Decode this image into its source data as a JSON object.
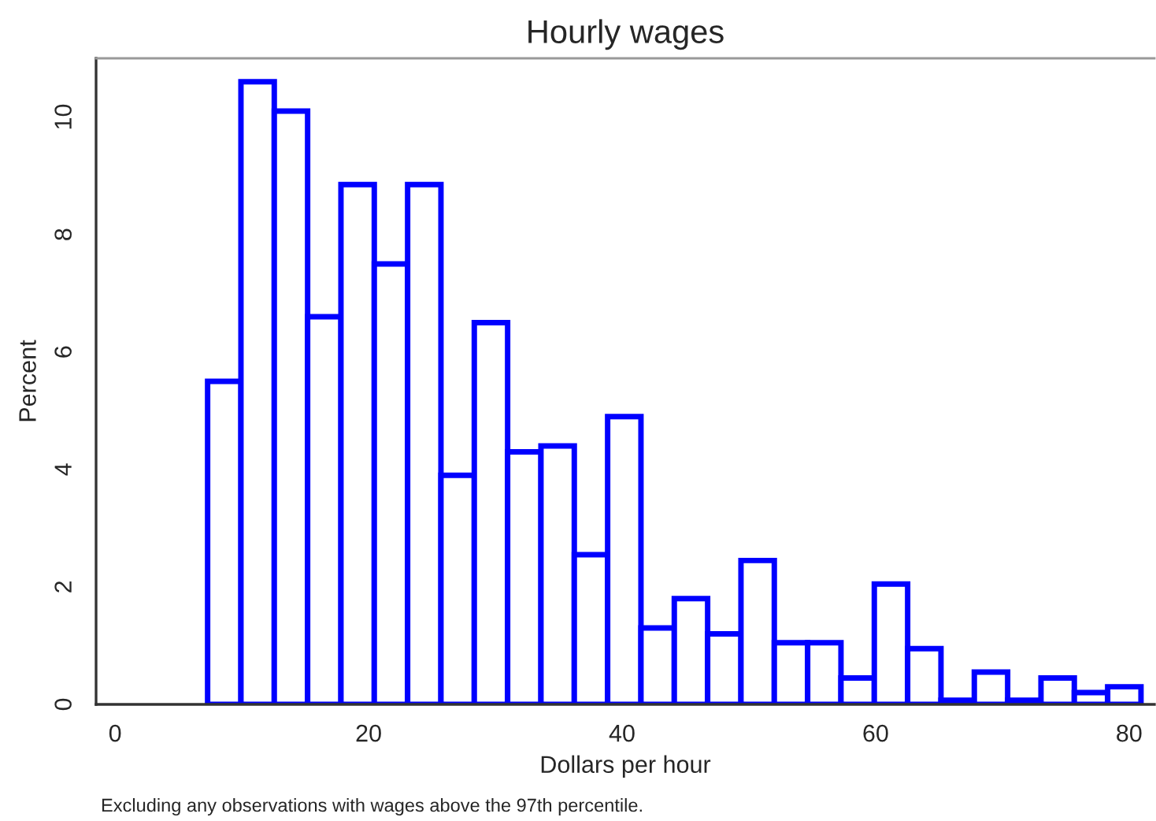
{
  "chart_data": {
    "type": "histogram",
    "title": "Hourly wages",
    "xlabel": "Dollars per hour",
    "ylabel": "Percent",
    "annotations": [
      "Excluding any observations with wages above the 97th percentile."
    ],
    "bins": [
      7.3,
      9.93,
      12.56,
      15.19,
      17.82,
      20.45,
      23.08,
      25.71,
      28.34,
      30.97,
      33.6,
      36.23,
      38.86,
      41.49,
      44.12,
      46.75,
      49.38,
      52.01,
      54.64,
      57.27,
      59.9,
      62.53,
      65.16,
      67.79,
      70.42,
      73.05,
      75.68,
      78.31,
      80.94
    ],
    "values": [
      5.5,
      10.6,
      10.1,
      6.6,
      8.85,
      7.5,
      8.85,
      3.9,
      6.5,
      4.3,
      4.4,
      2.55,
      4.9,
      1.3,
      1.8,
      1.2,
      2.45,
      1.05,
      1.05,
      0.45,
      2.05,
      0.95,
      0.07,
      0.55,
      0.07,
      0.45,
      0.2,
      0.3
    ],
    "color": "#0000ff",
    "xlim": [
      -1.5,
      82
    ],
    "ylim": [
      0,
      11
    ],
    "xticks": [
      0,
      20,
      40,
      60,
      80
    ],
    "yticks": [
      0,
      2,
      4,
      6,
      8,
      10
    ]
  }
}
